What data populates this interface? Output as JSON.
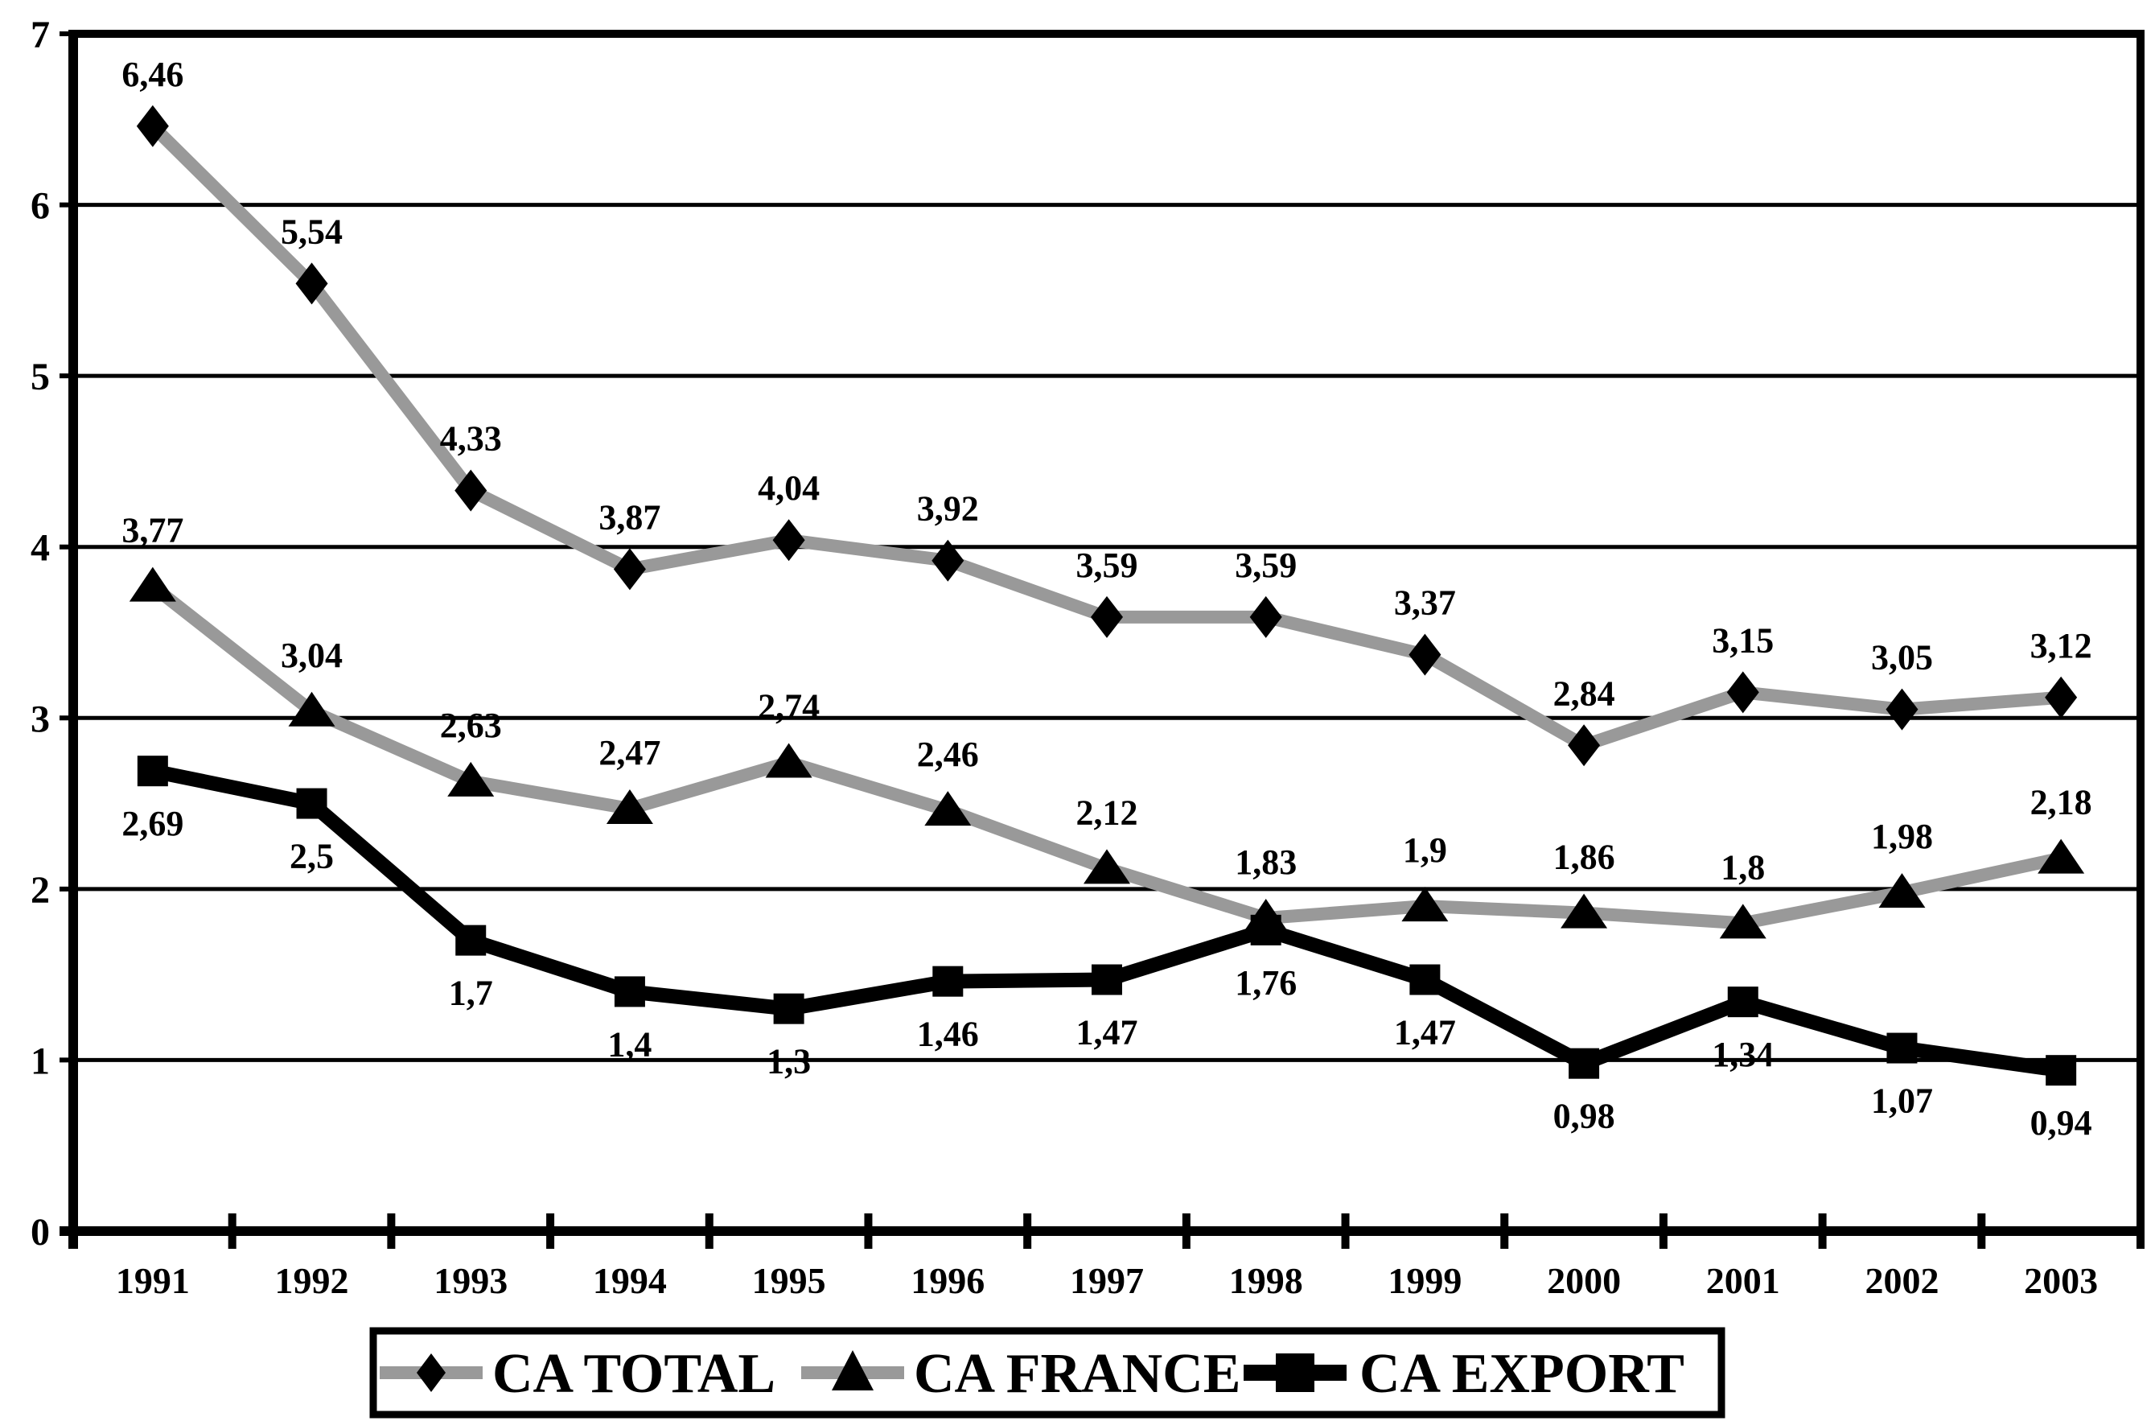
{
  "chart_data": {
    "type": "line",
    "title": "",
    "categories": [
      "1991",
      "1992",
      "1993",
      "1994",
      "1995",
      "1996",
      "1997",
      "1998",
      "1999",
      "2000",
      "2001",
      "2002",
      "2003"
    ],
    "series": [
      {
        "name": "CA TOTAL",
        "marker": "diamond",
        "line_color": "#999999",
        "marker_color": "#000000",
        "values": [
          6.46,
          5.54,
          4.33,
          3.87,
          4.04,
          3.92,
          3.59,
          3.59,
          3.37,
          2.84,
          3.15,
          3.05,
          3.12
        ],
        "labels": [
          "6,46",
          "5,54",
          "4,33",
          "3,87",
          "4,04",
          "3,92",
          "3,59",
          "3,59",
          "3,37",
          "2,84",
          "3,15",
          "3,05",
          "3,12"
        ],
        "label_position": "above"
      },
      {
        "name": "CA FRANCE",
        "marker": "triangle",
        "line_color": "#999999",
        "marker_color": "#000000",
        "values": [
          3.77,
          3.04,
          2.63,
          2.47,
          2.74,
          2.46,
          2.12,
          1.83,
          1.9,
          1.86,
          1.8,
          1.98,
          2.18
        ],
        "labels": [
          "3,77",
          "3,04",
          "2,63",
          "2,47",
          "2,74",
          "2,46",
          "2,12",
          "1,83",
          "1,9",
          "1,86",
          "1,8",
          "1,98",
          "2,18"
        ],
        "label_position": "above"
      },
      {
        "name": "CA EXPORT",
        "marker": "square",
        "line_color": "#000000",
        "marker_color": "#000000",
        "values": [
          2.69,
          2.5,
          1.7,
          1.4,
          1.3,
          1.46,
          1.47,
          1.76,
          1.47,
          0.98,
          1.34,
          1.07,
          0.94
        ],
        "labels": [
          "2,69",
          "2,5",
          "1,7",
          "1,4",
          "1,3",
          "1,46",
          "1,47",
          "1,76",
          "1,47",
          "0,98",
          "1,34",
          "1,07",
          "0,94"
        ],
        "label_position": "below"
      }
    ],
    "ylim": [
      0,
      7
    ],
    "yticks": [
      "0",
      "1",
      "2",
      "3",
      "4",
      "5",
      "6",
      "7"
    ],
    "grid": "horizontal",
    "legend_position": "bottom-center",
    "axis_color": "#000000",
    "background": "#ffffff"
  }
}
